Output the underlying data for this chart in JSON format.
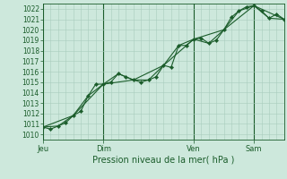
{
  "bg_color": "#cde8dc",
  "grid_color": "#a8ccbc",
  "line_color": "#1a5c2a",
  "marker_color": "#1a5c2a",
  "xlabel": "Pression niveau de la mer( hPa )",
  "ylim": [
    1009.5,
    1022.5
  ],
  "yticks": [
    1010,
    1011,
    1012,
    1013,
    1014,
    1015,
    1016,
    1017,
    1018,
    1019,
    1020,
    1021,
    1022
  ],
  "day_labels": [
    "Jeu",
    "Dim",
    "Ven",
    "Sam"
  ],
  "day_positions": [
    0,
    48,
    120,
    168
  ],
  "xlim": [
    0,
    192
  ],
  "series1_x": [
    0,
    6,
    12,
    18,
    24,
    30,
    36,
    42,
    48,
    54,
    60,
    66,
    72,
    78,
    84,
    90,
    96,
    102,
    108,
    114,
    120,
    126,
    132,
    138,
    144,
    150,
    156,
    162,
    168,
    174,
    180,
    186,
    192
  ],
  "series1_y": [
    1010.7,
    1010.5,
    1010.8,
    1011.1,
    1011.8,
    1012.2,
    1013.7,
    1014.8,
    1014.8,
    1015.0,
    1015.8,
    1015.5,
    1015.2,
    1015.0,
    1015.2,
    1015.5,
    1016.6,
    1016.4,
    1018.5,
    1018.5,
    1019.1,
    1019.2,
    1018.7,
    1019.0,
    1020.0,
    1021.2,
    1021.8,
    1022.2,
    1022.3,
    1021.8,
    1021.1,
    1021.5,
    1021.0
  ],
  "series2_x": [
    0,
    12,
    24,
    36,
    48,
    60,
    72,
    84,
    96,
    108,
    120,
    132,
    144,
    156,
    168,
    180,
    192
  ],
  "series2_y": [
    1010.7,
    1010.8,
    1011.8,
    1013.7,
    1014.8,
    1015.8,
    1015.2,
    1015.2,
    1016.6,
    1018.5,
    1019.1,
    1018.7,
    1020.0,
    1021.8,
    1022.3,
    1021.1,
    1021.0
  ],
  "series3_x": [
    0,
    24,
    48,
    72,
    96,
    120,
    144,
    168,
    192
  ],
  "series3_y": [
    1010.7,
    1011.8,
    1014.8,
    1015.2,
    1016.6,
    1019.1,
    1020.0,
    1022.3,
    1021.0
  ],
  "ytick_fontsize": 5.5,
  "xtick_fontsize": 6,
  "xlabel_fontsize": 7
}
